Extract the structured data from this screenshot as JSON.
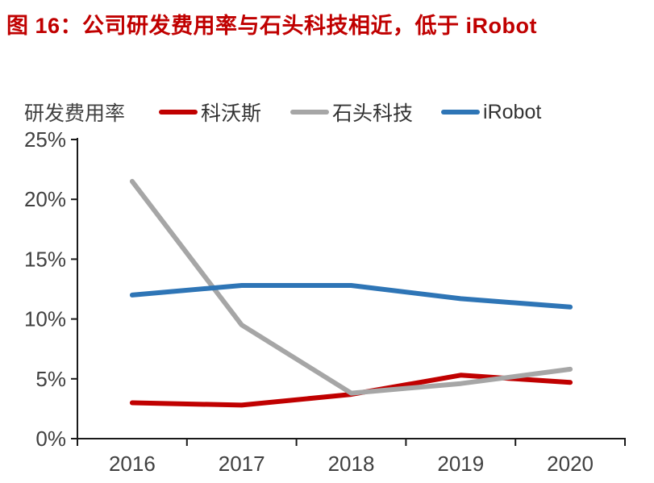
{
  "title": "图 16：公司研发费用率与石头科技相近，低于 iRobot",
  "axis_unit_label": "研发费用率",
  "legend": [
    {
      "label": "科沃斯",
      "color": "#C00000"
    },
    {
      "label": "石头科技",
      "color": "#A6A6A6"
    },
    {
      "label": "iRobot",
      "color": "#2E75B6"
    }
  ],
  "colors": {
    "title": "#C00000",
    "axis_line": "#1a1a1a",
    "tick_text": "#404040",
    "background": "#ffffff"
  },
  "chart_data": {
    "type": "line",
    "title": "图 16：公司研发费用率与石头科技相近，低于 iRobot",
    "ylabel": "研发费用率",
    "categories": [
      "2016",
      "2017",
      "2018",
      "2019",
      "2020"
    ],
    "series": [
      {
        "name": "科沃斯",
        "color": "#C00000",
        "values": [
          3.0,
          2.8,
          3.7,
          5.3,
          4.7
        ]
      },
      {
        "name": "石头科技",
        "color": "#A6A6A6",
        "values": [
          21.5,
          9.5,
          3.8,
          4.6,
          5.8
        ]
      },
      {
        "name": "iRobot",
        "color": "#2E75B6",
        "values": [
          12.0,
          12.8,
          12.8,
          11.7,
          11.0
        ]
      }
    ],
    "ylim": [
      0,
      25
    ],
    "ytick_step": 5,
    "ytick_labels": [
      "0%",
      "5%",
      "10%",
      "15%",
      "20%",
      "25%"
    ],
    "grid": false,
    "legend_position": "top"
  }
}
